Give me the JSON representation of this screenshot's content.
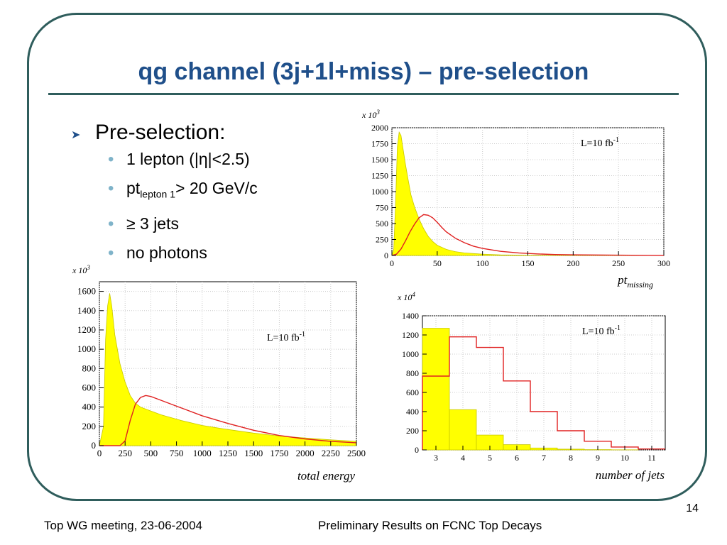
{
  "slide": {
    "title": "qg channel (3j+1l+miss) – pre-selection",
    "bullet_main": "Pre-selection:",
    "sub_bullets": [
      {
        "text": "1 lepton (|η|<2.5)"
      },
      {
        "pre": "pt",
        "sub": "lepton 1",
        "post": "> 20 GeV/c"
      },
      {
        "text": "≥ 3 jets"
      },
      {
        "text": "no photons"
      }
    ],
    "footer_left": "Top WG meeting, 23-06-2004",
    "footer_center": "Preliminary Results on FCNC Top Decays",
    "page_number": "14"
  },
  "colors": {
    "accent": "#1f4f8a",
    "frame": "#2f5d5c",
    "bullet": "#7fb3c9",
    "fill": "#ffff00",
    "signal": "#e02020"
  },
  "chart_data": [
    {
      "type": "bar",
      "xlabel": "pt",
      "xlabel_sub": "missing",
      "multiplier": "x 10",
      "multiplier_exp": "3",
      "annotation": "L=10 fb",
      "annotation_sup": "-1",
      "xlim": [
        0,
        300
      ],
      "ylim": [
        0,
        2000
      ],
      "x_ticks": [
        0,
        50,
        100,
        150,
        200,
        250,
        300
      ],
      "y_ticks": [
        0,
        250,
        500,
        750,
        1000,
        1250,
        1500,
        1750,
        2000
      ],
      "series": [
        {
          "style": "filled",
          "x": [
            0,
            2,
            4,
            6,
            8,
            10,
            12,
            15,
            18,
            21,
            25,
            30,
            35,
            40,
            45,
            50,
            60,
            70,
            80,
            100,
            120,
            150,
            200,
            300
          ],
          "y": [
            0,
            100,
            800,
            1700,
            1930,
            1880,
            1700,
            1420,
            1180,
            950,
            760,
            570,
            420,
            300,
            220,
            160,
            95,
            60,
            40,
            20,
            10,
            5,
            2,
            0
          ]
        },
        {
          "style": "line",
          "x": [
            0,
            5,
            10,
            15,
            20,
            25,
            30,
            35,
            40,
            45,
            50,
            55,
            60,
            70,
            80,
            90,
            100,
            120,
            140,
            160,
            180,
            200,
            250,
            300
          ],
          "y": [
            0,
            20,
            100,
            230,
            370,
            490,
            590,
            640,
            630,
            590,
            520,
            440,
            370,
            270,
            200,
            145,
            110,
            65,
            40,
            25,
            15,
            10,
            4,
            1
          ]
        }
      ]
    },
    {
      "type": "bar",
      "xlabel": "total energy",
      "multiplier": "x 10",
      "multiplier_exp": "3",
      "annotation": "L=10 fb",
      "annotation_sup": "-1",
      "xlim": [
        0,
        2500
      ],
      "ylim": [
        0,
        1700
      ],
      "x_ticks": [
        0,
        250,
        500,
        750,
        1000,
        1250,
        1500,
        1750,
        2000,
        2250,
        2500
      ],
      "y_ticks": [
        0,
        200,
        400,
        600,
        800,
        1000,
        1200,
        1400,
        1600
      ],
      "series": [
        {
          "style": "filled",
          "x": [
            0,
            40,
            60,
            80,
            100,
            120,
            150,
            200,
            250,
            300,
            350,
            400,
            500,
            600,
            700,
            800,
            1000,
            1200,
            1500,
            1750,
            2000,
            2250,
            2500
          ],
          "y": [
            0,
            200,
            1100,
            1450,
            1580,
            1450,
            1150,
            850,
            660,
            520,
            440,
            400,
            360,
            320,
            290,
            260,
            210,
            175,
            130,
            100,
            80,
            60,
            45
          ]
        },
        {
          "style": "line",
          "x": [
            0,
            200,
            250,
            300,
            350,
            400,
            450,
            500,
            550,
            600,
            700,
            800,
            1000,
            1250,
            1500,
            1750,
            2000,
            2250,
            2500
          ],
          "y": [
            0,
            0,
            50,
            260,
            430,
            500,
            520,
            510,
            490,
            470,
            430,
            390,
            310,
            230,
            160,
            105,
            70,
            45,
            30
          ]
        }
      ]
    },
    {
      "type": "bar",
      "xlabel": "number of jets",
      "multiplier": "x 10",
      "multiplier_exp": "4",
      "annotation": "L=10 fb",
      "annotation_sup": "-1",
      "xlim": [
        2.5,
        11.5
      ],
      "ylim": [
        0,
        1400
      ],
      "x_ticks": [
        3,
        4,
        5,
        6,
        7,
        8,
        9,
        10,
        11
      ],
      "y_ticks": [
        0,
        200,
        400,
        600,
        800,
        1000,
        1200,
        1400
      ],
      "series": [
        {
          "style": "filled",
          "categories": [
            3,
            4,
            5,
            6,
            7,
            8,
            9,
            10,
            11
          ],
          "values": [
            1270,
            420,
            155,
            55,
            20,
            8,
            3,
            1,
            0
          ]
        },
        {
          "style": "line",
          "categories": [
            3,
            4,
            5,
            6,
            7,
            8,
            9,
            10,
            11
          ],
          "values": [
            770,
            1180,
            1070,
            720,
            400,
            200,
            90,
            30,
            10
          ]
        }
      ]
    }
  ]
}
